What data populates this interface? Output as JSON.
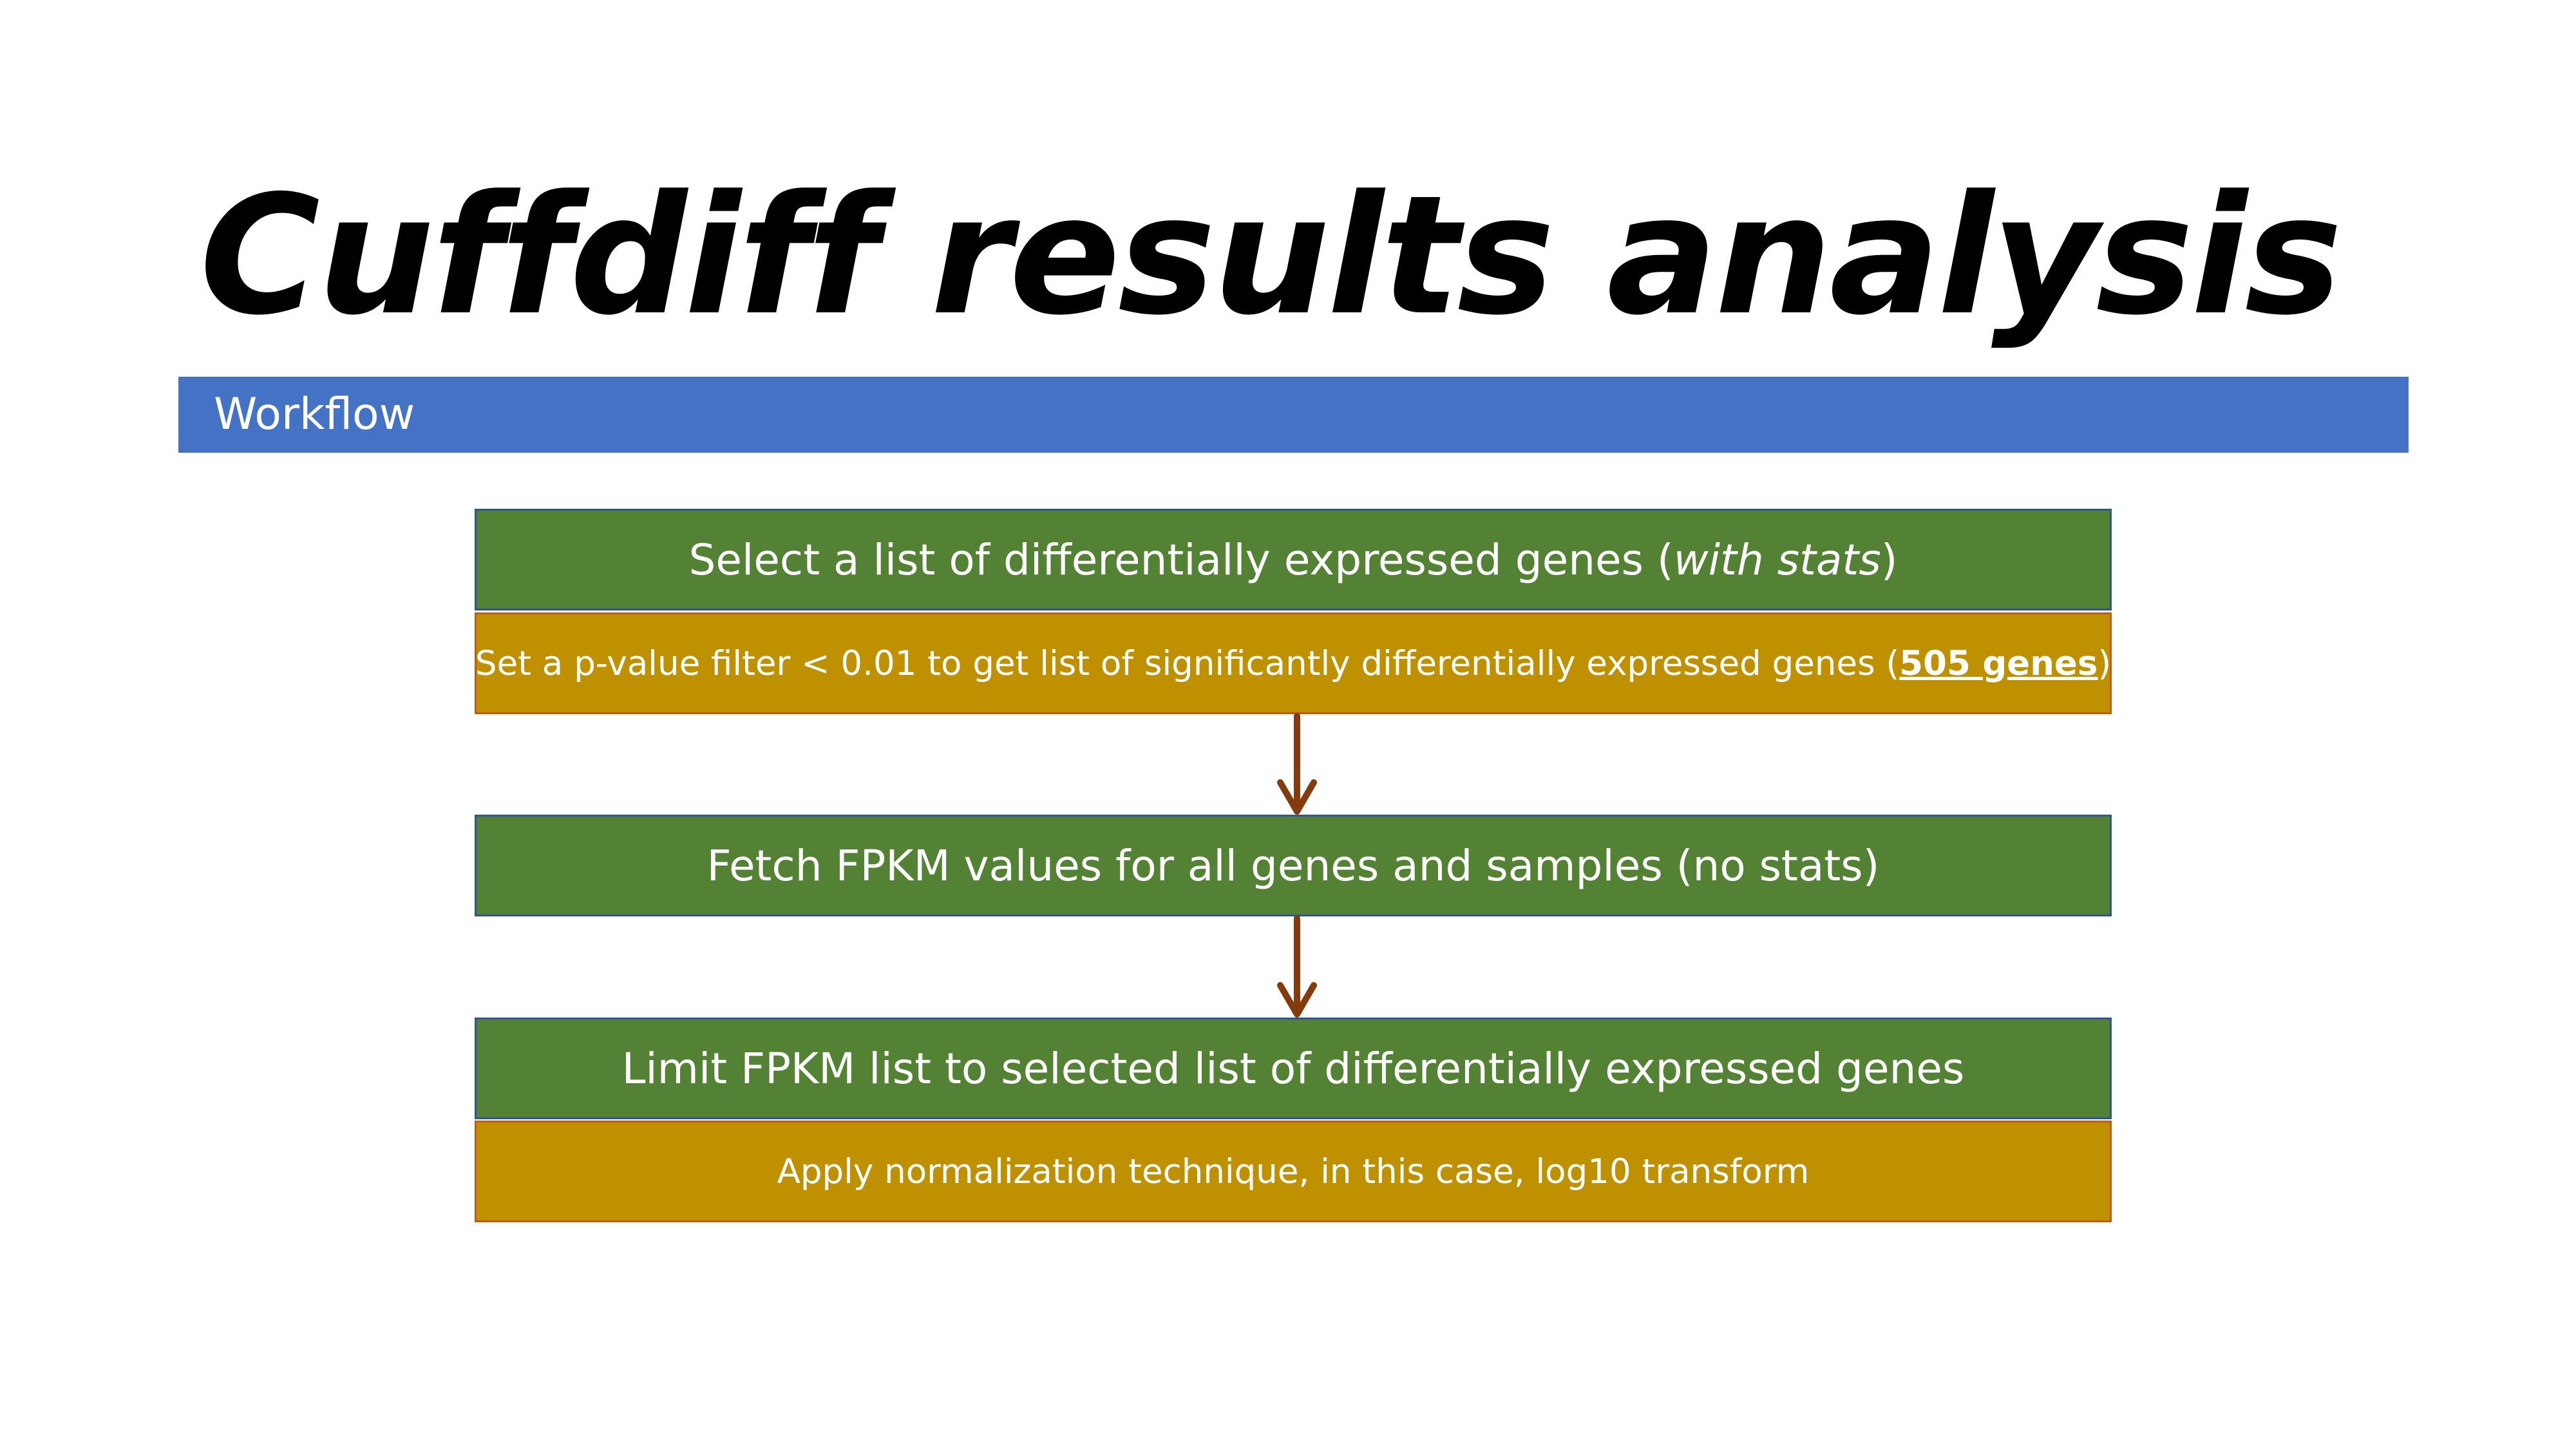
{
  "title": "Cuffdiff results analysis",
  "section": {
    "label": "Workflow",
    "color": "#4472c4"
  },
  "workflow": {
    "step1": {
      "heading_pre": "Select a list of differentially expressed genes (",
      "heading_emph": "with stats",
      "heading_post": ")",
      "detail_pre": "Set a p-value filter < 0.01 to get list of significantly differentially expressed genes (",
      "detail_strong": "505 genes",
      "detail_post": ")"
    },
    "step2": {
      "heading": "Fetch FPKM values for all genes and samples (no stats)"
    },
    "step3": {
      "heading": "Limit FPKM list to selected list of differentially expressed genes",
      "detail": "Apply normalization technique, in this case, log10 transform"
    }
  },
  "colors": {
    "step_box": "#548235",
    "detail_box": "#bf9000",
    "arrow": "#843c0c"
  }
}
